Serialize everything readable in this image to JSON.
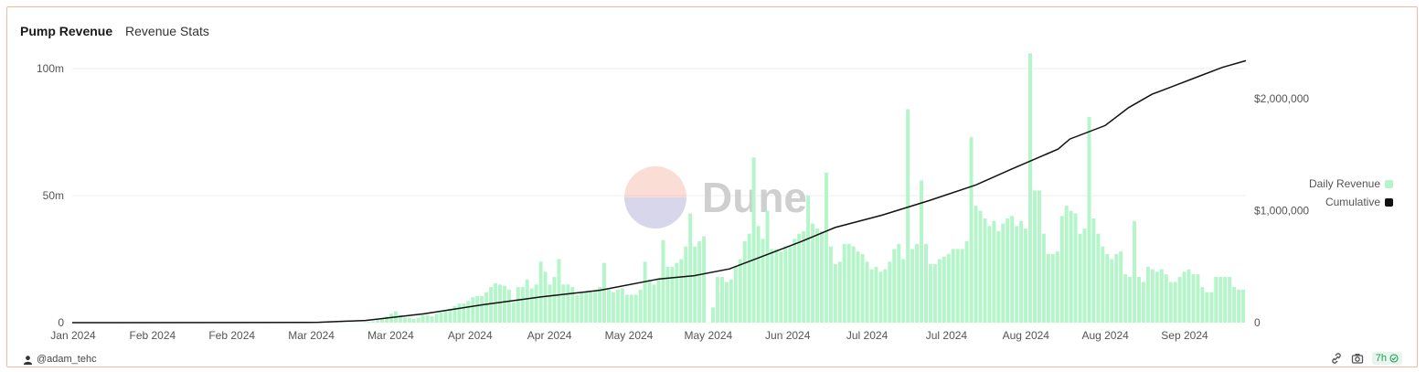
{
  "header": {
    "title": "Pump Revenue",
    "subtitle": "Revenue Stats"
  },
  "footer": {
    "author": "@adam_tehc",
    "age": "7h"
  },
  "watermark": {
    "text": "Dune"
  },
  "colors": {
    "bar": "#b4f5c9",
    "line": "#111111",
    "grid": "#eeeeee",
    "text": "#555555",
    "badge_text": "#1f9d55"
  },
  "chart_data": {
    "type": "bar+line",
    "x_tick_labels": [
      "Jan 2024",
      "Feb 2024",
      "Feb 2024",
      "Mar 2024",
      "Mar 2024",
      "Apr 2024",
      "Apr 2024",
      "May 2024",
      "May 2024",
      "Jun 2024",
      "Jul 2024",
      "Jul 2024",
      "Aug 2024",
      "Aug 2024",
      "Sep 2024"
    ],
    "left_axis": {
      "ticks": [
        0,
        50000000,
        100000000
      ],
      "tick_labels": [
        "0",
        "50m",
        "100m"
      ],
      "range": [
        0,
        110000000
      ]
    },
    "right_axis": {
      "ticks": [
        0,
        1000000,
        2000000
      ],
      "tick_labels": [
        "0",
        "$1,000,000",
        "$2,000,000"
      ],
      "range": [
        0,
        2750000
      ]
    },
    "legend": {
      "position": "right",
      "entries": [
        "Daily Revenue",
        "Cumulative"
      ]
    },
    "series": [
      {
        "name": "Daily Revenue",
        "axis": "left",
        "values_millions": [
          0.1,
          0.1,
          0.1,
          0.1,
          0.1,
          0.1,
          0.1,
          0.1,
          0.1,
          0.1,
          0.1,
          0.1,
          0.1,
          0.1,
          0.1,
          0.1,
          0.1,
          0.1,
          0.1,
          0.1,
          0.1,
          0.1,
          0.1,
          0.1,
          0.1,
          0.1,
          0.1,
          0.1,
          0.1,
          0.1,
          0.1,
          0.1,
          0.1,
          0.1,
          0.1,
          0.1,
          0.1,
          0.1,
          0.1,
          0.1,
          0.1,
          0.1,
          0.1,
          0.1,
          0.1,
          0.1,
          0.1,
          0.1,
          0.1,
          0.1,
          0.1,
          0.1,
          0.1,
          0.1,
          0.1,
          0.1,
          0.1,
          0.1,
          0.1,
          0.1,
          0.1,
          0.1,
          0.1,
          0.1,
          0.2,
          0.3,
          0.5,
          1,
          1.5,
          2.5,
          3.5,
          4.5,
          3,
          2,
          2,
          1.5,
          2,
          3,
          3,
          2.5,
          3.5,
          4,
          4.5,
          5.5,
          6.5,
          7.5,
          7.5,
          8.5,
          10,
          10.5,
          10.5,
          12,
          14,
          15.5,
          15,
          14.5,
          13,
          8,
          14,
          14,
          17,
          13.5,
          15,
          24,
          20,
          15,
          18,
          25,
          15,
          15,
          14,
          11,
          12,
          12,
          12,
          12.5,
          14,
          23.5,
          13,
          12,
          13,
          13.5,
          11,
          11,
          11,
          13,
          24,
          17,
          15,
          17.5,
          32.5,
          22,
          22,
          23.5,
          25,
          30,
          43,
          30,
          32,
          34,
          0.1,
          6,
          18,
          18,
          16,
          17,
          22,
          25,
          32,
          35,
          65,
          38,
          33,
          44,
          29,
          29,
          28,
          30,
          30,
          33,
          35,
          36,
          50,
          39,
          37,
          36,
          59,
          30,
          23,
          24,
          31,
          31,
          30,
          28,
          27,
          24,
          21,
          22,
          20,
          21,
          24,
          29,
          31,
          25,
          84,
          29,
          31,
          56,
          31,
          23,
          23,
          25,
          26,
          27,
          29,
          29,
          29,
          32,
          73,
          46,
          44,
          41,
          38,
          40,
          36,
          39,
          41,
          42,
          38,
          40,
          37,
          106,
          52,
          52,
          35,
          27,
          27,
          28,
          42,
          46,
          44,
          43,
          35,
          37,
          81,
          41,
          35,
          30,
          27,
          25,
          27,
          28,
          19,
          18,
          40,
          18,
          16,
          22,
          21,
          20,
          21,
          19,
          16,
          16,
          18,
          20,
          21,
          19,
          19,
          14,
          12,
          12,
          18,
          18,
          18,
          18,
          14,
          13,
          13
        ]
      },
      {
        "name": "Cumulative",
        "axis": "right",
        "points": [
          {
            "x": 0.0,
            "y": 0
          },
          {
            "x": 0.2,
            "y": 2000
          },
          {
            "x": 0.21,
            "y": 3000
          },
          {
            "x": 0.25,
            "y": 20000
          },
          {
            "x": 0.3,
            "y": 80000
          },
          {
            "x": 0.35,
            "y": 160000
          },
          {
            "x": 0.4,
            "y": 230000
          },
          {
            "x": 0.45,
            "y": 290000
          },
          {
            "x": 0.5,
            "y": 390000
          },
          {
            "x": 0.53,
            "y": 420000
          },
          {
            "x": 0.56,
            "y": 480000
          },
          {
            "x": 0.58,
            "y": 560000
          },
          {
            "x": 0.62,
            "y": 720000
          },
          {
            "x": 0.65,
            "y": 850000
          },
          {
            "x": 0.69,
            "y": 960000
          },
          {
            "x": 0.73,
            "y": 1090000
          },
          {
            "x": 0.77,
            "y": 1230000
          },
          {
            "x": 0.8,
            "y": 1370000
          },
          {
            "x": 0.84,
            "y": 1550000
          },
          {
            "x": 0.85,
            "y": 1640000
          },
          {
            "x": 0.88,
            "y": 1760000
          },
          {
            "x": 0.9,
            "y": 1920000
          },
          {
            "x": 0.92,
            "y": 2040000
          },
          {
            "x": 0.94,
            "y": 2120000
          },
          {
            "x": 0.96,
            "y": 2200000
          },
          {
            "x": 0.98,
            "y": 2280000
          },
          {
            "x": 1.0,
            "y": 2340000
          }
        ]
      }
    ],
    "grid": true
  }
}
